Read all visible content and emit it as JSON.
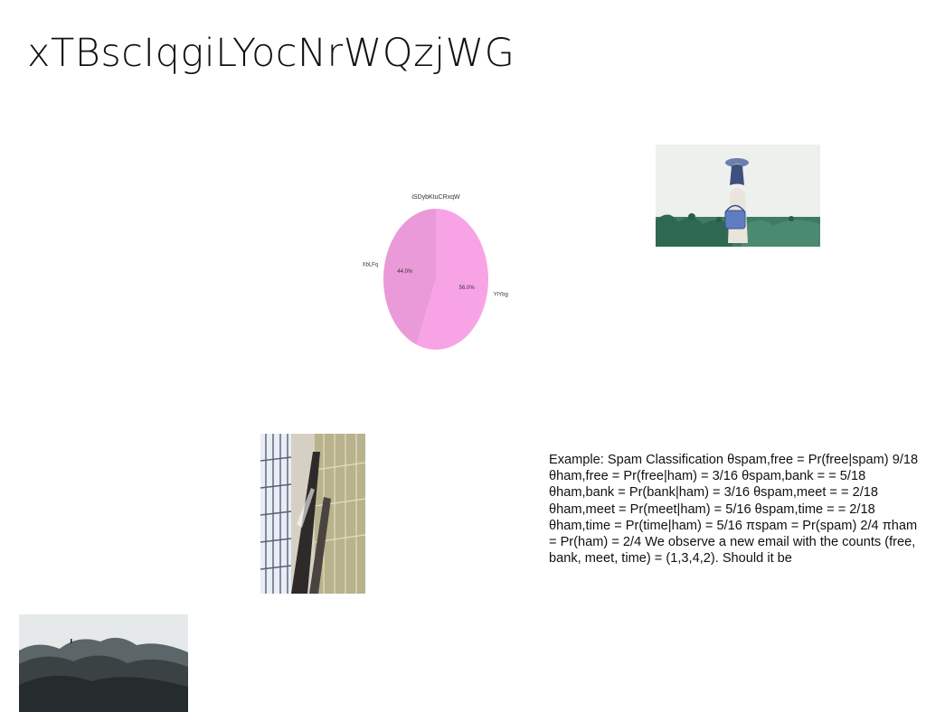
{
  "page": {
    "title": "xTBscIqgiLYocNrWQzjWG"
  },
  "chart_data": {
    "type": "pie",
    "title": "iSDybKtuCRxqW",
    "slices": [
      {
        "label": "YlYbg",
        "value": 56.0,
        "display": "56.0%",
        "color": "#f8a3e6"
      },
      {
        "label": "XbLFq",
        "value": 44.0,
        "display": "44.0%",
        "color": "#ea9ad8"
      }
    ],
    "start_angle_deg": 90,
    "direction": "clockwise"
  },
  "images": {
    "woman": {
      "icon": "photo-woman-field"
    },
    "building": {
      "icon": "photo-building-interior"
    },
    "rocks": {
      "icon": "photo-rocky-mountain"
    }
  },
  "text_block": {
    "content": "Example: Spam Classification θspam,free = Pr(free|spam) 9/18 θham,free = Pr(free|ham) = 3/16 θspam,bank = = 5/18 θham,bank = Pr(bank|ham) = 3/16 θspam,meet = = 2/18 θham,meet = Pr(meet|ham) = 5/16 θspam,time = = 2/18 θham,time = Pr(time|ham) = 5/16 πspam = Pr(spam) 2/4 πham = Pr(ham) = 2/4 We observe a new email with the counts (free, bank, meet, time) = (1,3,4,2). Should it be"
  }
}
